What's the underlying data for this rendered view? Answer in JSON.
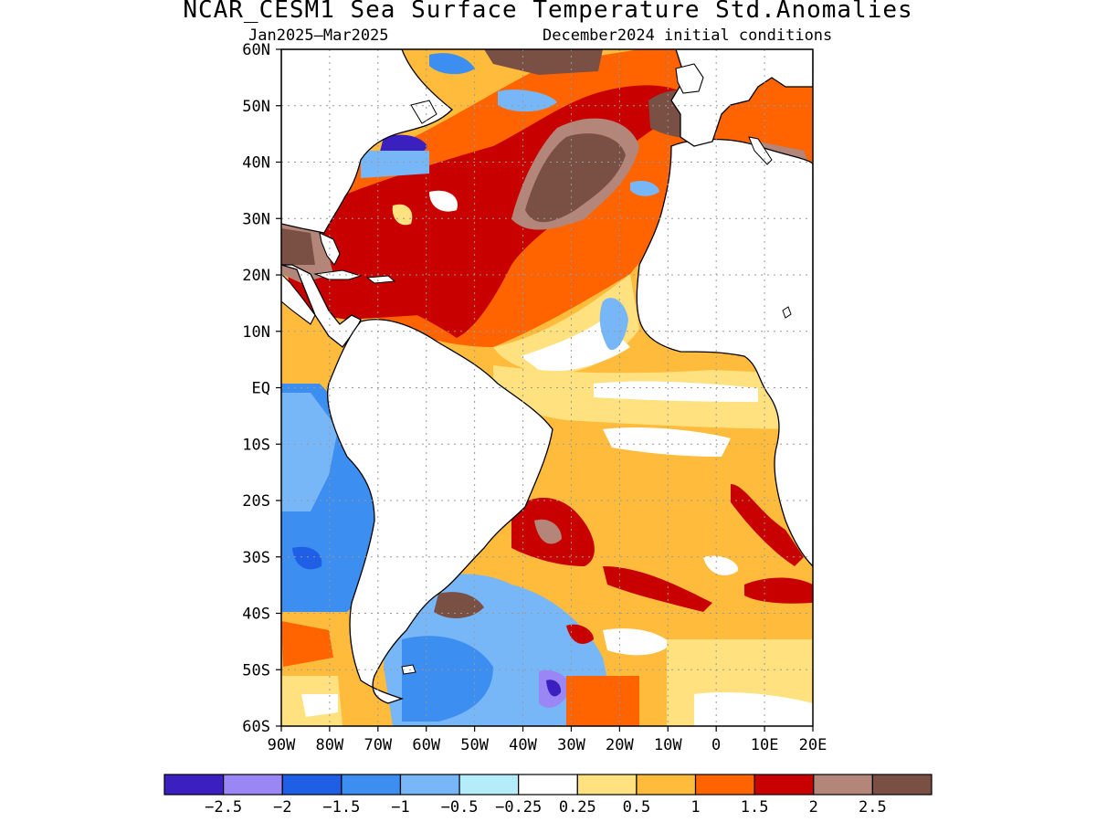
{
  "title": "NCAR_CESM1 Sea Surface Temperature Std.Anomalies",
  "subtitle_left": "Jan2025–Mar2025",
  "subtitle_right": "December2024 initial conditions",
  "lat_labels": [
    "60N",
    "50N",
    "40N",
    "30N",
    "20N",
    "10N",
    "EQ",
    "10S",
    "20S",
    "30S",
    "40S",
    "50S",
    "60S"
  ],
  "lon_labels": [
    "90W",
    "80W",
    "70W",
    "60W",
    "50W",
    "40W",
    "30W",
    "20W",
    "10W",
    "0",
    "10E",
    "20E"
  ],
  "colorbar": {
    "colors": [
      "#3b1fbf",
      "#9b86f5",
      "#1e5fe6",
      "#3c8ef0",
      "#78b7f7",
      "#b4ecfa",
      "#ffffff",
      "#ffe180",
      "#ffbb3c",
      "#ff6400",
      "#c80000",
      "#b4867a",
      "#7a5044"
    ],
    "labels": [
      "−2.5",
      "−2",
      "−1.5",
      "−1",
      "−0.5",
      "−0.25",
      "0.25",
      "0.5",
      "1",
      "1.5",
      "2",
      "2.5"
    ]
  },
  "colors": {
    "land": "#ffffff",
    "coast": "#000000",
    "grid": "#999999"
  }
}
